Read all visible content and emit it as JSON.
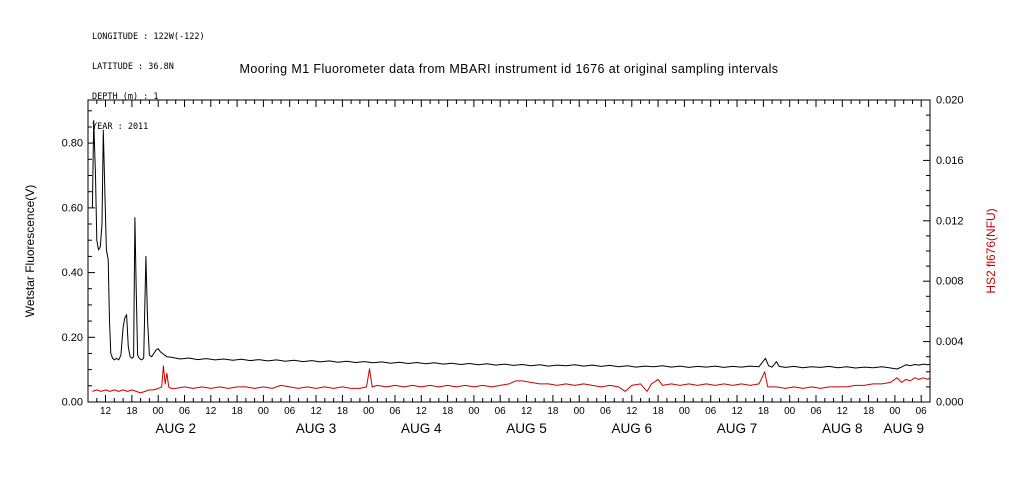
{
  "header": {
    "longitude": "LONGITUDE : 122W(-122)",
    "latitude": "LATITUDE : 36.8N",
    "depth": "DEPTH (m) : 1",
    "year": "YEAR : 2011"
  },
  "title": "Mooring M1 Fluorometer data from MBARI instrument id 1676 at original sampling intervals",
  "chart_data": {
    "type": "line",
    "title": "Mooring M1 Fluorometer data from MBARI instrument id 1676 at original sampling intervals",
    "background": "#ffffff",
    "grid": false,
    "left_axis": {
      "label": "Wetstar Fluorescence(V)",
      "color": "#000000",
      "range": [
        0,
        0.9333
      ],
      "tick_values": [
        0.0,
        0.2,
        0.4,
        0.6,
        0.8
      ],
      "tick_labels": [
        "0.00",
        "0.20",
        "0.40",
        "0.60",
        "0.80"
      ],
      "minor_step": 0.05
    },
    "right_axis": {
      "label": "HS2 fl676(NFU)",
      "color": "#cc0000",
      "range": [
        0,
        0.02
      ],
      "tick_values": [
        0.0,
        0.004,
        0.008,
        0.012,
        0.016,
        0.02
      ],
      "tick_labels": [
        "0.000",
        "0.004",
        "0.008",
        "0.012",
        "0.016",
        "0.020"
      ],
      "minor_step": 0.001
    },
    "x_axis": {
      "unit": "hours since AUG 1 2011 00:00",
      "range_hours": [
        8,
        200
      ],
      "minor_step_hours": 2,
      "tick_hours": [
        12,
        18,
        24,
        30,
        36,
        42,
        48,
        54,
        60,
        66,
        72,
        78,
        84,
        90,
        96,
        102,
        108,
        114,
        120,
        126,
        132,
        138,
        144,
        150,
        156,
        162,
        168,
        174,
        180,
        186,
        192,
        198
      ],
      "tick_labels": [
        "12",
        "18",
        "00",
        "06",
        "12",
        "18",
        "00",
        "06",
        "12",
        "18",
        "00",
        "06",
        "12",
        "18",
        "00",
        "06",
        "12",
        "18",
        "00",
        "06",
        "12",
        "18",
        "00",
        "06",
        "12",
        "18",
        "00",
        "06",
        "12",
        "18",
        "00",
        "06"
      ],
      "day_labels": [
        {
          "label": "AUG 2",
          "hour": 28
        },
        {
          "label": "AUG 3",
          "hour": 60
        },
        {
          "label": "AUG 4",
          "hour": 84
        },
        {
          "label": "AUG 5",
          "hour": 108
        },
        {
          "label": "AUG 6",
          "hour": 132
        },
        {
          "label": "AUG 7",
          "hour": 156
        },
        {
          "label": "AUG 8",
          "hour": 180
        },
        {
          "label": "AUG 9",
          "hour": 194
        }
      ]
    },
    "series": [
      {
        "name": "Wetstar Fluorescence(V)",
        "axis": "left",
        "color": "#000000",
        "points": [
          [
            9,
            0.6
          ],
          [
            9.3,
            0.87
          ],
          [
            9.7,
            0.7
          ],
          [
            10,
            0.5
          ],
          [
            10.4,
            0.47
          ],
          [
            10.8,
            0.48
          ],
          [
            11.2,
            0.55
          ],
          [
            11.5,
            0.84
          ],
          [
            11.9,
            0.62
          ],
          [
            12.2,
            0.47
          ],
          [
            12.6,
            0.44
          ],
          [
            12.9,
            0.25
          ],
          [
            13.2,
            0.15
          ],
          [
            13.6,
            0.135
          ],
          [
            14,
            0.13
          ],
          [
            14.5,
            0.135
          ],
          [
            15,
            0.13
          ],
          [
            15.5,
            0.145
          ],
          [
            16,
            0.23
          ],
          [
            16.4,
            0.26
          ],
          [
            16.8,
            0.27
          ],
          [
            17.2,
            0.17
          ],
          [
            17.6,
            0.14
          ],
          [
            18,
            0.135
          ],
          [
            18.4,
            0.14
          ],
          [
            18.7,
            0.57
          ],
          [
            19,
            0.35
          ],
          [
            19.3,
            0.145
          ],
          [
            19.7,
            0.135
          ],
          [
            20.2,
            0.13
          ],
          [
            20.7,
            0.135
          ],
          [
            21.2,
            0.45
          ],
          [
            21.6,
            0.25
          ],
          [
            22,
            0.145
          ],
          [
            22.5,
            0.14
          ],
          [
            23,
            0.15
          ],
          [
            23.5,
            0.16
          ],
          [
            24,
            0.165
          ],
          [
            24.5,
            0.155
          ],
          [
            25,
            0.15
          ],
          [
            25.5,
            0.145
          ],
          [
            26,
            0.14
          ],
          [
            27,
            0.138
          ],
          [
            29,
            0.133
          ],
          [
            31,
            0.136
          ],
          [
            33,
            0.131
          ],
          [
            35,
            0.134
          ],
          [
            37,
            0.13
          ],
          [
            39,
            0.133
          ],
          [
            41,
            0.129
          ],
          [
            43,
            0.132
          ],
          [
            45,
            0.128
          ],
          [
            47,
            0.131
          ],
          [
            49,
            0.127
          ],
          [
            51,
            0.13
          ],
          [
            53,
            0.126
          ],
          [
            55,
            0.129
          ],
          [
            57,
            0.125
          ],
          [
            59,
            0.128
          ],
          [
            61,
            0.124
          ],
          [
            63,
            0.127
          ],
          [
            65,
            0.123
          ],
          [
            67,
            0.126
          ],
          [
            69,
            0.122
          ],
          [
            71,
            0.125
          ],
          [
            73,
            0.121
          ],
          [
            75,
            0.124
          ],
          [
            77,
            0.12
          ],
          [
            79,
            0.123
          ],
          [
            81,
            0.119
          ],
          [
            83,
            0.122
          ],
          [
            85,
            0.118
          ],
          [
            87,
            0.121
          ],
          [
            89,
            0.117
          ],
          [
            91,
            0.12
          ],
          [
            93,
            0.116
          ],
          [
            95,
            0.119
          ],
          [
            97,
            0.115
          ],
          [
            99,
            0.118
          ],
          [
            101,
            0.114
          ],
          [
            103,
            0.117
          ],
          [
            105,
            0.113
          ],
          [
            107,
            0.116
          ],
          [
            109,
            0.112
          ],
          [
            111,
            0.115
          ],
          [
            113,
            0.111
          ],
          [
            115,
            0.114
          ],
          [
            117,
            0.112
          ],
          [
            119,
            0.115
          ],
          [
            121,
            0.111
          ],
          [
            123,
            0.114
          ],
          [
            125,
            0.11
          ],
          [
            127,
            0.113
          ],
          [
            129,
            0.109
          ],
          [
            131,
            0.112
          ],
          [
            133,
            0.108
          ],
          [
            135,
            0.111
          ],
          [
            137,
            0.109
          ],
          [
            139,
            0.112
          ],
          [
            141,
            0.108
          ],
          [
            143,
            0.111
          ],
          [
            145,
            0.107
          ],
          [
            147,
            0.11
          ],
          [
            149,
            0.108
          ],
          [
            151,
            0.111
          ],
          [
            153,
            0.107
          ],
          [
            155,
            0.11
          ],
          [
            157,
            0.108
          ],
          [
            159,
            0.111
          ],
          [
            161,
            0.109
          ],
          [
            162.5,
            0.135
          ],
          [
            163.2,
            0.112
          ],
          [
            164,
            0.108
          ],
          [
            165,
            0.125
          ],
          [
            165.6,
            0.11
          ],
          [
            167,
            0.107
          ],
          [
            169,
            0.11
          ],
          [
            171,
            0.106
          ],
          [
            173,
            0.109
          ],
          [
            175,
            0.107
          ],
          [
            177,
            0.11
          ],
          [
            179,
            0.106
          ],
          [
            181,
            0.109
          ],
          [
            183,
            0.105
          ],
          [
            185,
            0.108
          ],
          [
            187,
            0.106
          ],
          [
            189,
            0.109
          ],
          [
            191,
            0.105
          ],
          [
            192.5,
            0.102
          ],
          [
            193.5,
            0.108
          ],
          [
            194.5,
            0.115
          ],
          [
            195.5,
            0.112
          ],
          [
            196.5,
            0.116
          ],
          [
            197.5,
            0.114
          ],
          [
            198.5,
            0.117
          ],
          [
            199.5,
            0.115
          ],
          [
            200,
            0.117
          ]
        ]
      },
      {
        "name": "HS2 fl676(NFU)",
        "axis": "right",
        "color": "#cc0000",
        "points": [
          [
            9,
            0.0007
          ],
          [
            10,
            0.0008
          ],
          [
            11,
            0.0007
          ],
          [
            12,
            0.0008
          ],
          [
            13,
            0.0007
          ],
          [
            14,
            0.0008
          ],
          [
            15,
            0.0007
          ],
          [
            16,
            0.0008
          ],
          [
            17,
            0.0007
          ],
          [
            18,
            0.0008
          ],
          [
            19,
            0.0007
          ],
          [
            20,
            0.0006
          ],
          [
            21,
            0.0007
          ],
          [
            22,
            0.0008
          ],
          [
            23,
            0.0008
          ],
          [
            24,
            0.0009
          ],
          [
            24.8,
            0.001
          ],
          [
            25.2,
            0.0024
          ],
          [
            25.6,
            0.0012
          ],
          [
            26,
            0.0019
          ],
          [
            26.4,
            0.001
          ],
          [
            27,
            0.0009
          ],
          [
            28,
            0.0009
          ],
          [
            30,
            0.001
          ],
          [
            32,
            0.0009
          ],
          [
            34,
            0.001
          ],
          [
            36,
            0.0009
          ],
          [
            38,
            0.001
          ],
          [
            40,
            0.0009
          ],
          [
            42,
            0.001
          ],
          [
            44,
            0.001
          ],
          [
            46,
            0.0009
          ],
          [
            48,
            0.001
          ],
          [
            50,
            0.0009
          ],
          [
            52,
            0.0011
          ],
          [
            54,
            0.001
          ],
          [
            56,
            0.0009
          ],
          [
            58,
            0.001
          ],
          [
            60,
            0.0009
          ],
          [
            62,
            0.001
          ],
          [
            64,
            0.0009
          ],
          [
            66,
            0.001
          ],
          [
            68,
            0.0009
          ],
          [
            70,
            0.0009
          ],
          [
            71.5,
            0.001
          ],
          [
            72.2,
            0.0022
          ],
          [
            72.8,
            0.001
          ],
          [
            74,
            0.0011
          ],
          [
            76,
            0.001
          ],
          [
            78,
            0.0011
          ],
          [
            80,
            0.001
          ],
          [
            82,
            0.0011
          ],
          [
            84,
            0.001
          ],
          [
            86,
            0.0011
          ],
          [
            88,
            0.001
          ],
          [
            90,
            0.0011
          ],
          [
            92,
            0.001
          ],
          [
            94,
            0.0011
          ],
          [
            96,
            0.001
          ],
          [
            98,
            0.0011
          ],
          [
            100,
            0.001
          ],
          [
            102,
            0.0011
          ],
          [
            104,
            0.0012
          ],
          [
            105.5,
            0.0014
          ],
          [
            107,
            0.0014
          ],
          [
            109,
            0.0013
          ],
          [
            111,
            0.0012
          ],
          [
            113,
            0.0012
          ],
          [
            115,
            0.0011
          ],
          [
            117,
            0.0012
          ],
          [
            119,
            0.0011
          ],
          [
            121,
            0.0012
          ],
          [
            123,
            0.0011
          ],
          [
            125,
            0.001
          ],
          [
            127,
            0.0011
          ],
          [
            129,
            0.001
          ],
          [
            130.5,
            0.0007
          ],
          [
            132,
            0.0011
          ],
          [
            134,
            0.0012
          ],
          [
            135.5,
            0.0007
          ],
          [
            136.5,
            0.0012
          ],
          [
            138,
            0.0015
          ],
          [
            139,
            0.0011
          ],
          [
            141,
            0.0012
          ],
          [
            143,
            0.0011
          ],
          [
            145,
            0.0012
          ],
          [
            147,
            0.0011
          ],
          [
            149,
            0.0012
          ],
          [
            151,
            0.0011
          ],
          [
            153,
            0.0012
          ],
          [
            155,
            0.0011
          ],
          [
            157,
            0.0012
          ],
          [
            159,
            0.0011
          ],
          [
            161,
            0.0012
          ],
          [
            162.3,
            0.002
          ],
          [
            163,
            0.001
          ],
          [
            165,
            0.001
          ],
          [
            167,
            0.0009
          ],
          [
            169,
            0.001
          ],
          [
            171,
            0.0009
          ],
          [
            173,
            0.001
          ],
          [
            175,
            0.0009
          ],
          [
            177,
            0.001
          ],
          [
            179,
            0.001
          ],
          [
            181,
            0.001
          ],
          [
            183,
            0.0011
          ],
          [
            185,
            0.0011
          ],
          [
            187,
            0.0012
          ],
          [
            189,
            0.0012
          ],
          [
            191,
            0.0013
          ],
          [
            192.5,
            0.0016
          ],
          [
            193.5,
            0.0013
          ],
          [
            194.5,
            0.0015
          ],
          [
            195.5,
            0.0014
          ],
          [
            196.5,
            0.0016
          ],
          [
            197.5,
            0.0015
          ],
          [
            198.5,
            0.0016
          ],
          [
            199.5,
            0.0015
          ],
          [
            200,
            0.0016
          ]
        ]
      }
    ]
  }
}
